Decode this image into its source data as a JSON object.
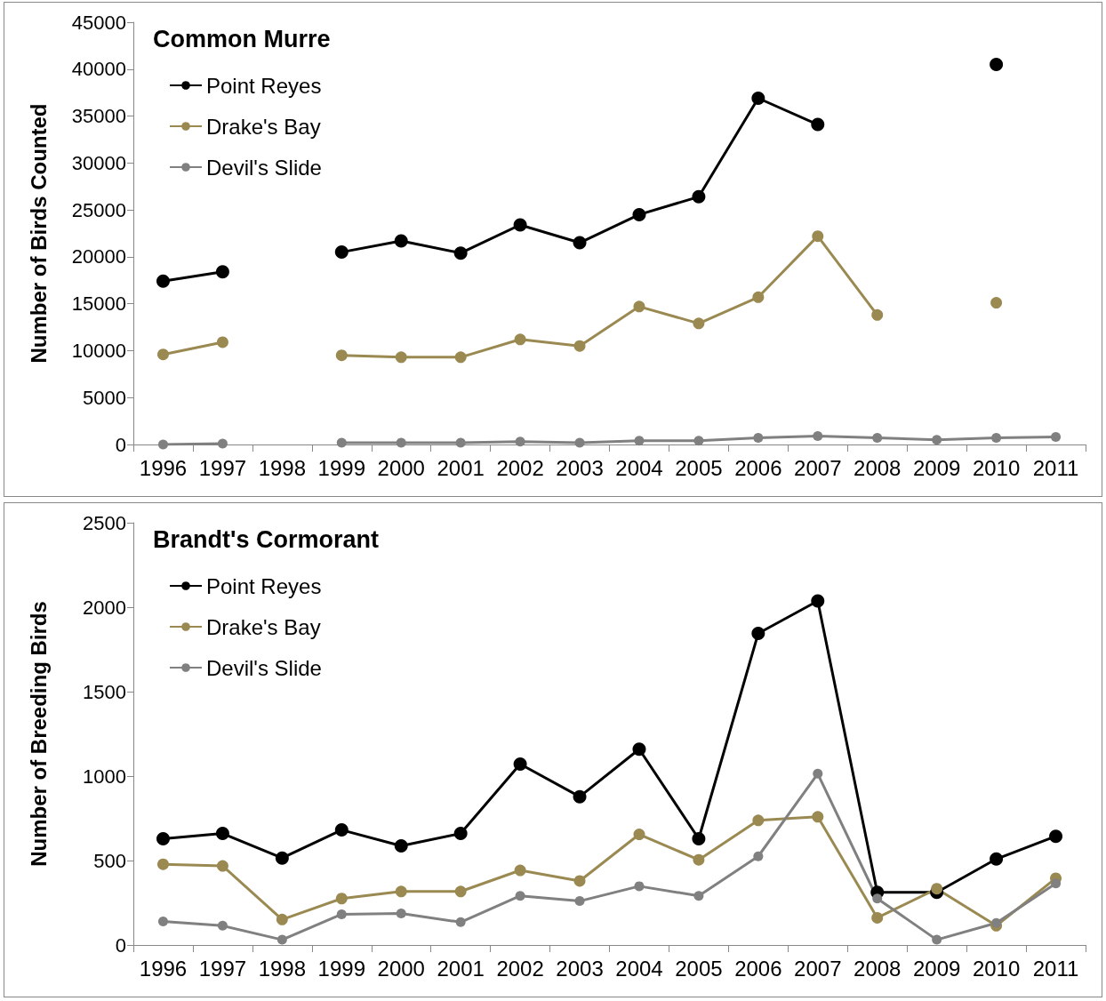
{
  "chart_data": [
    {
      "type": "line",
      "title": "Common Murre",
      "ylabel": "Number of Birds Counted",
      "categories": [
        "1996",
        "1997",
        "1998",
        "1999",
        "2000",
        "2001",
        "2002",
        "2003",
        "2004",
        "2005",
        "2006",
        "2007",
        "2008",
        "2009",
        "2010",
        "2011"
      ],
      "ylim": [
        0,
        45000
      ],
      "yticks": [
        0,
        5000,
        10000,
        15000,
        20000,
        25000,
        30000,
        35000,
        40000,
        45000
      ],
      "legend": "top left",
      "marker": "circle",
      "line_style": "solid",
      "series": [
        {
          "name": "Point Reyes",
          "color": "#000000",
          "values": [
            17400,
            18400,
            null,
            20500,
            21700,
            20400,
            23400,
            21500,
            24500,
            26400,
            36900,
            34100,
            null,
            null,
            40500,
            null
          ]
        },
        {
          "name": "Drake's Bay",
          "color": "#9a8a52",
          "values": [
            9600,
            10900,
            null,
            9500,
            9300,
            9300,
            11200,
            10500,
            14700,
            12900,
            15700,
            22200,
            13800,
            null,
            15100,
            null
          ]
        },
        {
          "name": "Devil's Slide",
          "color": "#808080",
          "values": [
            0,
            100,
            null,
            200,
            200,
            200,
            300,
            200,
            400,
            400,
            700,
            900,
            700,
            500,
            700,
            800
          ]
        }
      ]
    },
    {
      "type": "line",
      "title": "Brandt's Cormorant",
      "ylabel": "Number of Breeding Birds",
      "categories": [
        "1996",
        "1997",
        "1998",
        "1999",
        "2000",
        "2001",
        "2002",
        "2003",
        "2004",
        "2005",
        "2006",
        "2007",
        "2008",
        "2009",
        "2010",
        "2011"
      ],
      "ylim": [
        0,
        2500
      ],
      "yticks": [
        0,
        500,
        1000,
        1500,
        2000,
        2500
      ],
      "legend": "top left",
      "marker": "circle",
      "line_style": "solid",
      "series": [
        {
          "name": "Point Reyes",
          "color": "#000000",
          "values": [
            629,
            660,
            515,
            681,
            587,
            660,
            1071,
            878,
            1159,
            629,
            1845,
            2037,
            312,
            312,
            509,
            644
          ]
        },
        {
          "name": "Drake's Bay",
          "color": "#9a8a52",
          "values": [
            478,
            468,
            151,
            275,
            317,
            317,
            442,
            379,
            655,
            504,
            738,
            759,
            161,
            333,
            114,
            395
          ]
        },
        {
          "name": "Devil's Slide",
          "color": "#808080",
          "values": [
            140,
            114,
            31,
            182,
            187,
            135,
            291,
            260,
            348,
            291,
            525,
            1014,
            275,
            31,
            130,
            364
          ]
        }
      ]
    }
  ]
}
